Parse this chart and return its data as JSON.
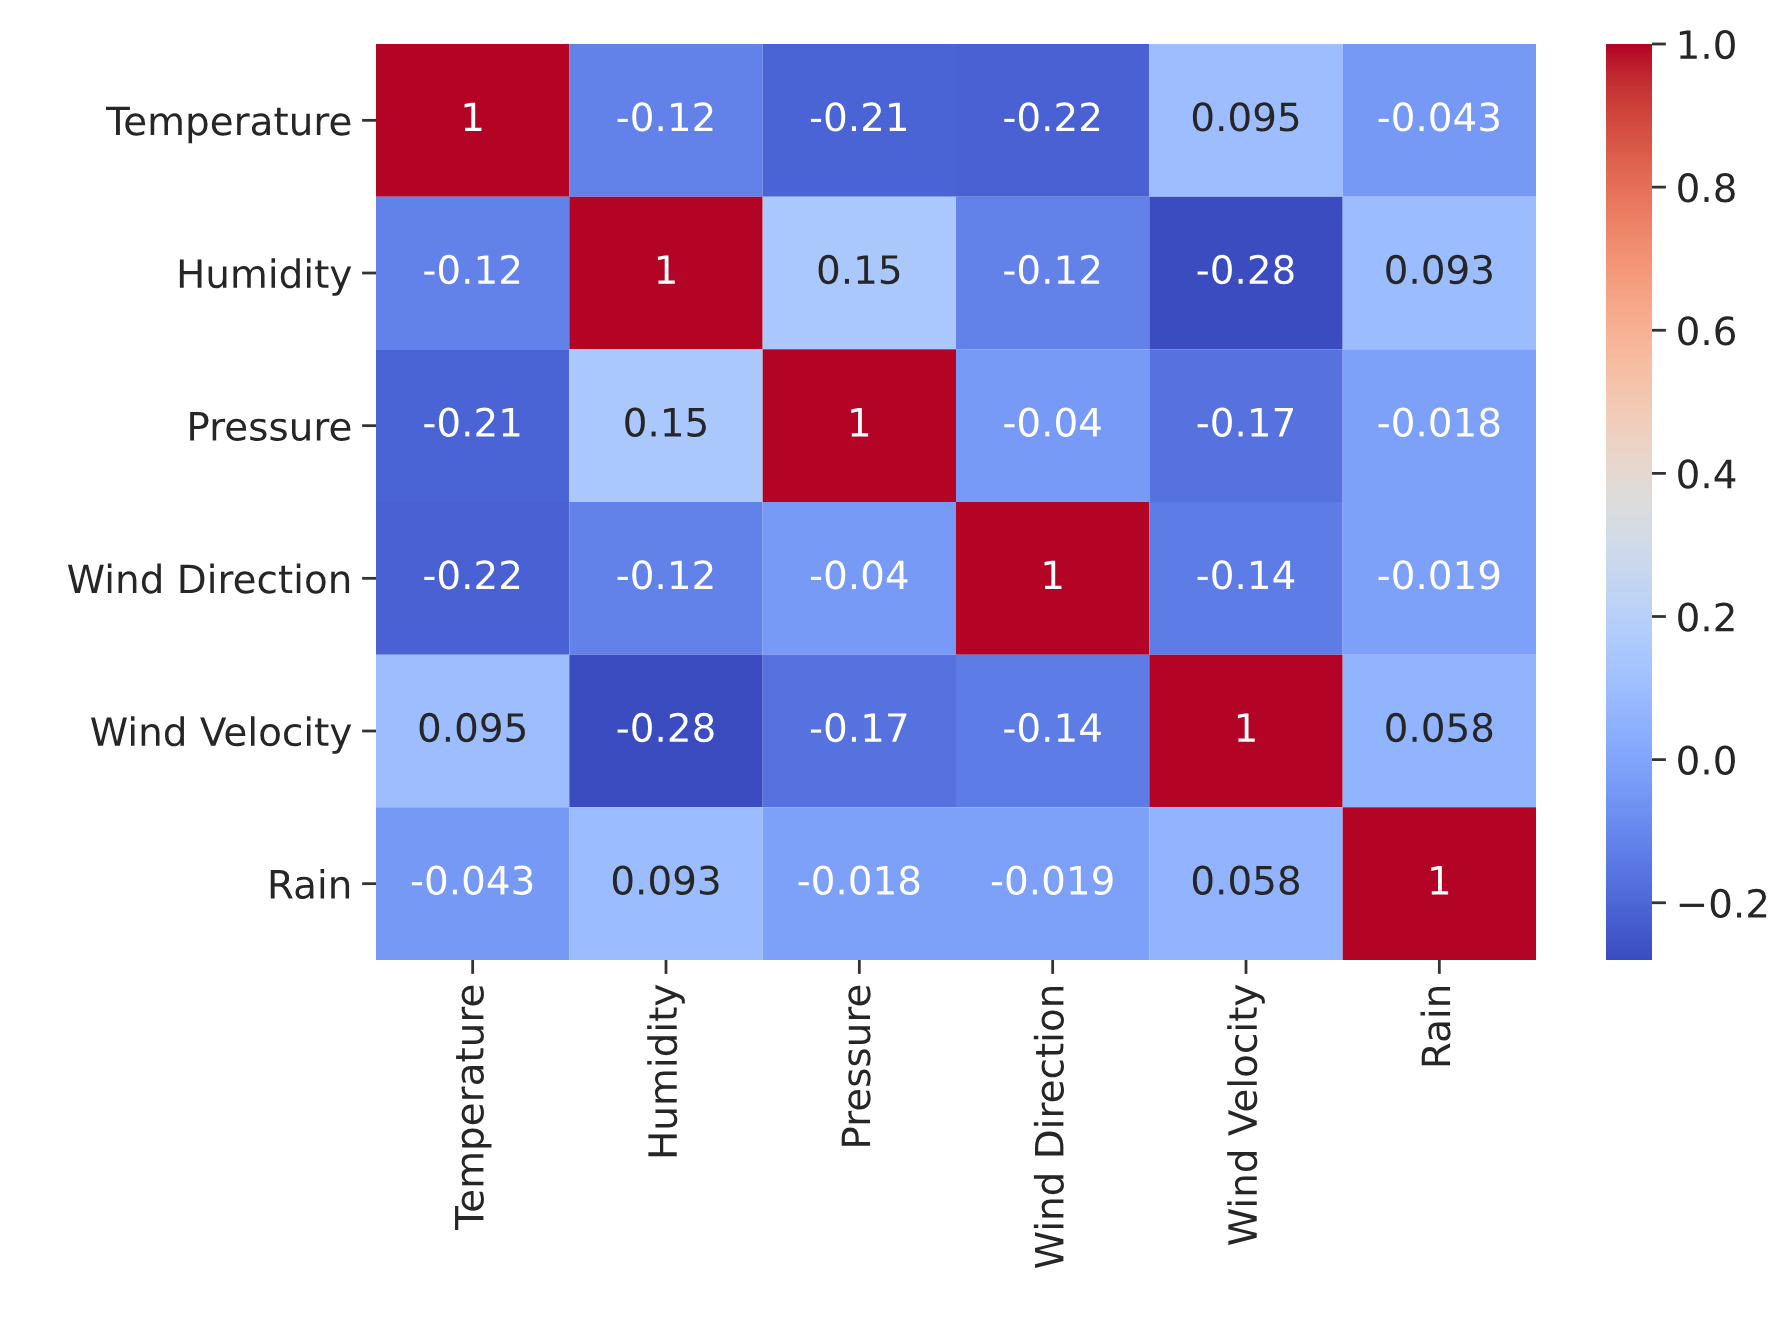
{
  "chart_data": {
    "type": "heatmap",
    "categories": [
      "Temperature",
      "Humidity",
      "Pressure",
      "Wind Direction",
      "Wind Velocity",
      "Rain"
    ],
    "y_categories": [
      "Temperature",
      "Humidity",
      "Pressure",
      "Wind Direction",
      "Wind Velocity",
      "Rain"
    ],
    "cells": [
      [
        1,
        -0.12,
        -0.21,
        -0.22,
        0.095,
        -0.043
      ],
      [
        -0.12,
        1,
        0.15,
        -0.12,
        -0.28,
        0.093
      ],
      [
        -0.21,
        0.15,
        1,
        -0.04,
        -0.17,
        -0.018
      ],
      [
        -0.22,
        -0.12,
        -0.04,
        1,
        -0.14,
        -0.019
      ],
      [
        0.095,
        -0.28,
        -0.17,
        -0.14,
        1,
        0.058
      ],
      [
        -0.043,
        0.093,
        -0.018,
        -0.019,
        0.058,
        1
      ]
    ],
    "data_labels": true,
    "clim": [
      -0.28,
      1.0
    ],
    "cticks": [
      {
        "value": -0.2,
        "label": "−0.2"
      },
      {
        "value": 0.0,
        "label": "0.0"
      },
      {
        "value": 0.2,
        "label": "0.2"
      },
      {
        "value": 0.4,
        "label": "0.4"
      },
      {
        "value": 0.6,
        "label": "0.6"
      },
      {
        "value": 0.8,
        "label": "0.8"
      },
      {
        "value": 1.0,
        "label": "1.0"
      }
    ]
  }
}
